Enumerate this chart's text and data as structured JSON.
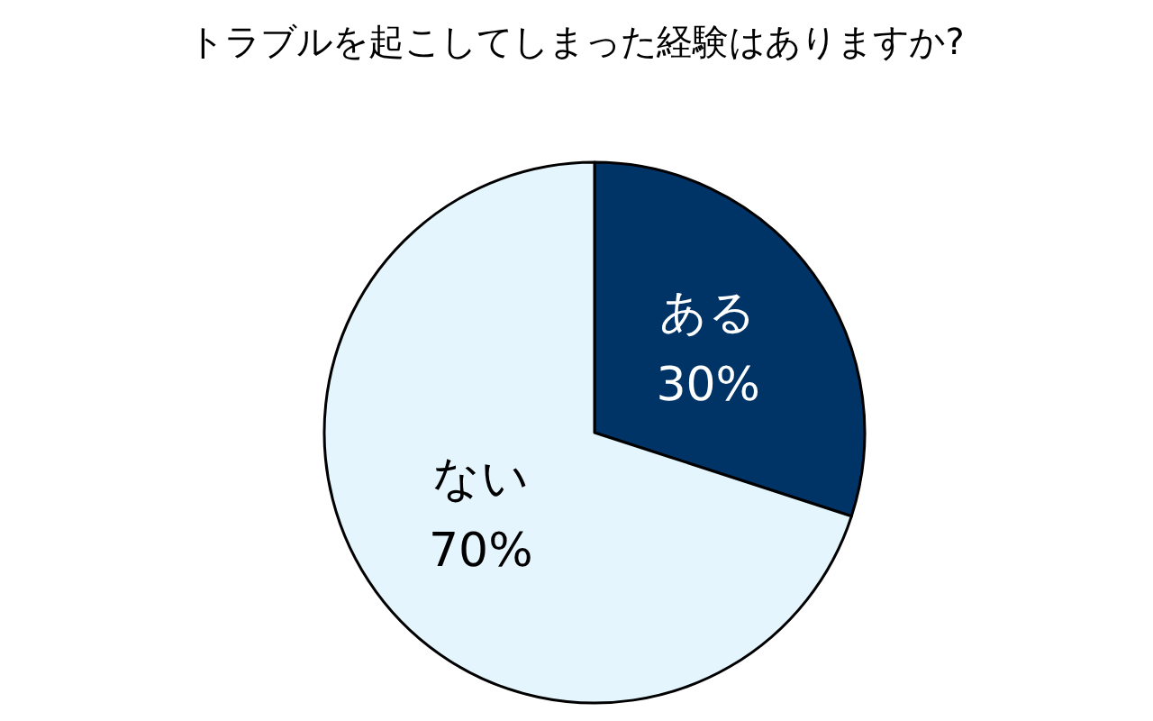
{
  "chart_data": {
    "type": "pie",
    "title": "トラブルを起こしてしまった経験はありますか?",
    "categories": [
      "ある",
      "ない"
    ],
    "values": [
      30,
      70
    ],
    "colors": [
      "#003366",
      "#e4f5fd"
    ],
    "value_labels": [
      "30%",
      "70%"
    ],
    "legend": false
  }
}
